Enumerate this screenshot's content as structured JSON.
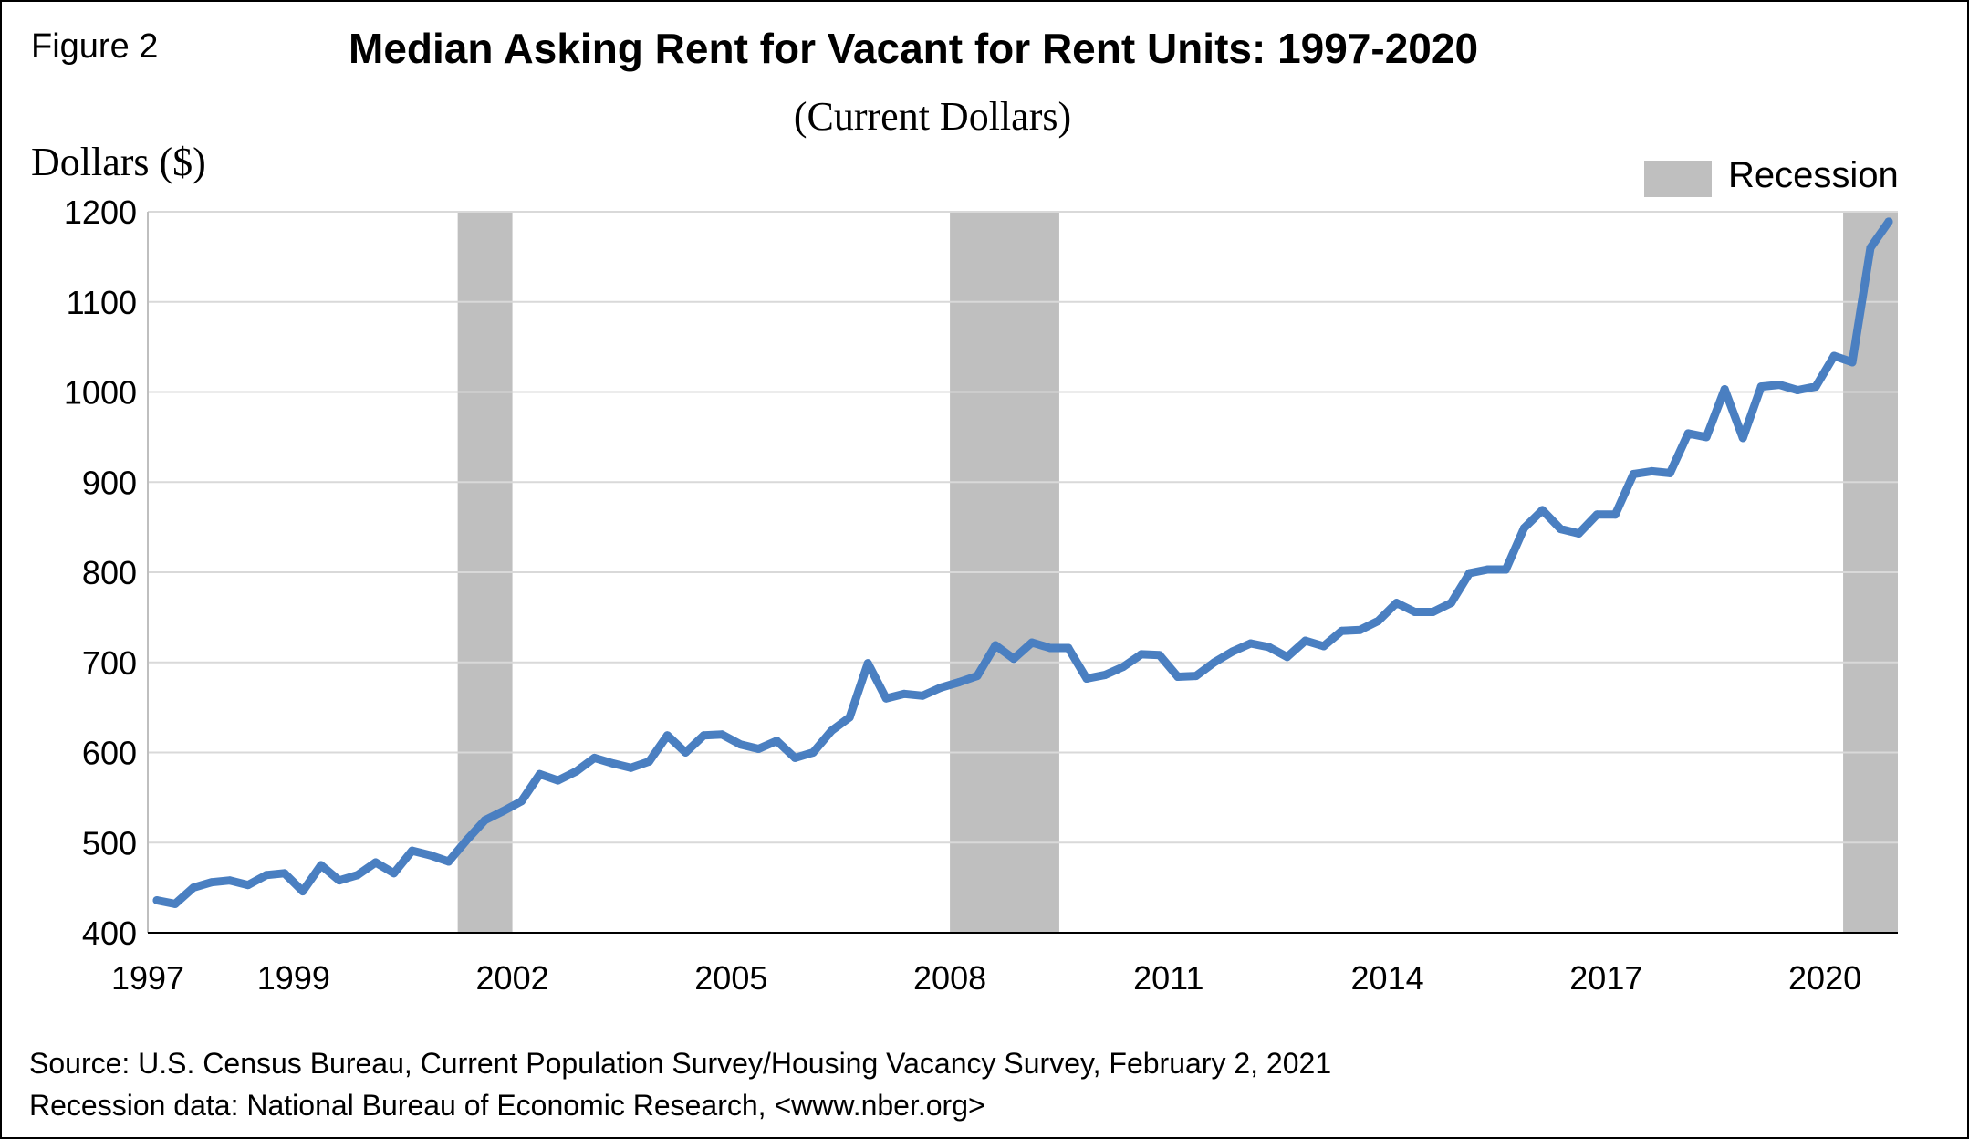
{
  "figure_label": "Figure 2",
  "title": "Median Asking Rent for Vacant for Rent Units: 1997-2020",
  "subtitle": "(Current Dollars)",
  "source_lines": [
    "Source: U.S. Census Bureau, Current Population Survey/Housing Vacancy Survey, February 2, 2021",
    "Recession data: National Bureau of Economic Research, <www.nber.org>"
  ],
  "colors": {
    "line": "#4a7fc1",
    "recession": "#bfbfbf",
    "grid": "#d9d9d9",
    "axis": "#000000"
  },
  "chart_data": {
    "type": "line",
    "ylabel": "Dollars ($)",
    "ylim": [
      400,
      1200
    ],
    "yticks": [
      400,
      500,
      600,
      700,
      800,
      900,
      1000,
      1100,
      1200
    ],
    "xlim": [
      1997.0,
      2021.0
    ],
    "xticks": [
      1997,
      1999,
      2002,
      2005,
      2008,
      2011,
      2014,
      2017,
      2020
    ],
    "grid": "horizontal",
    "legend": {
      "position": "top-right",
      "entries": [
        "Recession"
      ]
    },
    "recessions": [
      {
        "start": 2001.25,
        "end": 2002.0
      },
      {
        "start": 2008.0,
        "end": 2009.5
      },
      {
        "start": 2020.25,
        "end": 2021.0
      }
    ],
    "series": [
      {
        "frequency": "quarterly",
        "values": [
          436,
          432,
          450,
          456,
          458,
          453,
          464,
          466,
          446,
          475,
          458,
          464,
          478,
          466,
          491,
          486,
          479,
          503,
          525,
          535,
          546,
          576,
          569,
          579,
          594,
          588,
          583,
          590,
          619,
          600,
          619,
          620,
          609,
          604,
          613,
          594,
          600,
          624,
          639,
          699,
          660,
          665,
          663,
          672,
          678,
          685,
          719,
          704,
          722,
          716,
          716,
          682,
          686,
          695,
          709,
          708,
          684,
          685,
          700,
          712,
          721,
          717,
          706,
          724,
          718,
          735,
          736,
          746,
          766,
          756,
          756,
          766,
          799,
          803,
          803,
          849,
          869,
          848,
          843,
          864,
          864,
          909,
          912,
          910,
          954,
          950,
          1003,
          949,
          1006,
          1008,
          1002,
          1006,
          1040,
          1033,
          1160,
          1189
        ]
      }
    ]
  }
}
